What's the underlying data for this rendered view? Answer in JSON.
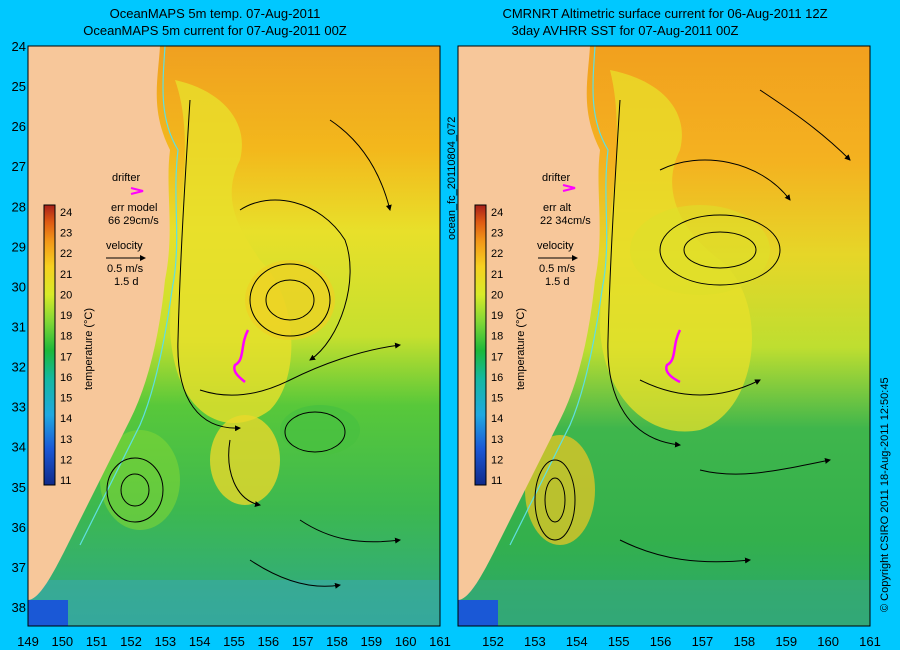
{
  "colors": {
    "background": "#00c8ff",
    "land": "#f7c79a",
    "drifter": "#ff00ff",
    "isobath": "#5fe0e0"
  },
  "panels": [
    {
      "title_line1": "OceanMAPS 5m temp. 07-Aug-2011",
      "title_line2": "OceanMAPS 5m current for 07-Aug-2011 00Z",
      "drifter_label": "drifter",
      "err_label": "err model",
      "err_value": "66 29cm/s",
      "velocity_label": "velocity",
      "velocity_scale": "0.5 m/s",
      "velocity_time": "1.5 d",
      "colorbar_label": "temperature (°C)"
    },
    {
      "title_line1": "CMRNRT Altimetric surface current for 06-Aug-2011 12Z",
      "title_line2": "3day AVHRR SST for 07-Aug-2011 00Z",
      "drifter_label": "drifter",
      "err_label": "err alt",
      "err_value": "22 34cm/s",
      "velocity_label": "velocity",
      "velocity_scale": "0.5 m/s",
      "velocity_time": "1.5 d",
      "colorbar_label": "temperature (°C)"
    }
  ],
  "axes": {
    "lat_ticks": [
      "24",
      "25",
      "26",
      "27",
      "28",
      "29",
      "30",
      "31",
      "32",
      "33",
      "34",
      "35",
      "36",
      "37",
      "38"
    ],
    "lon_ticks_left": [
      "149",
      "150",
      "151",
      "152",
      "153",
      "154",
      "155",
      "156",
      "157",
      "158",
      "159",
      "160",
      "161"
    ],
    "lon_ticks_right": [
      "152",
      "153",
      "154",
      "155",
      "156",
      "157",
      "158",
      "159",
      "160",
      "161"
    ]
  },
  "colorbar_ticks": [
    "24",
    "23",
    "22",
    "21",
    "20",
    "19",
    "18",
    "17",
    "16",
    "15",
    "14",
    "13",
    "12",
    "11"
  ],
  "side_labels": {
    "middle": "ocean_fc_20110804_072",
    "right": "© Copyright CSIRO 2011   18-Aug-2011 12:50:45"
  }
}
